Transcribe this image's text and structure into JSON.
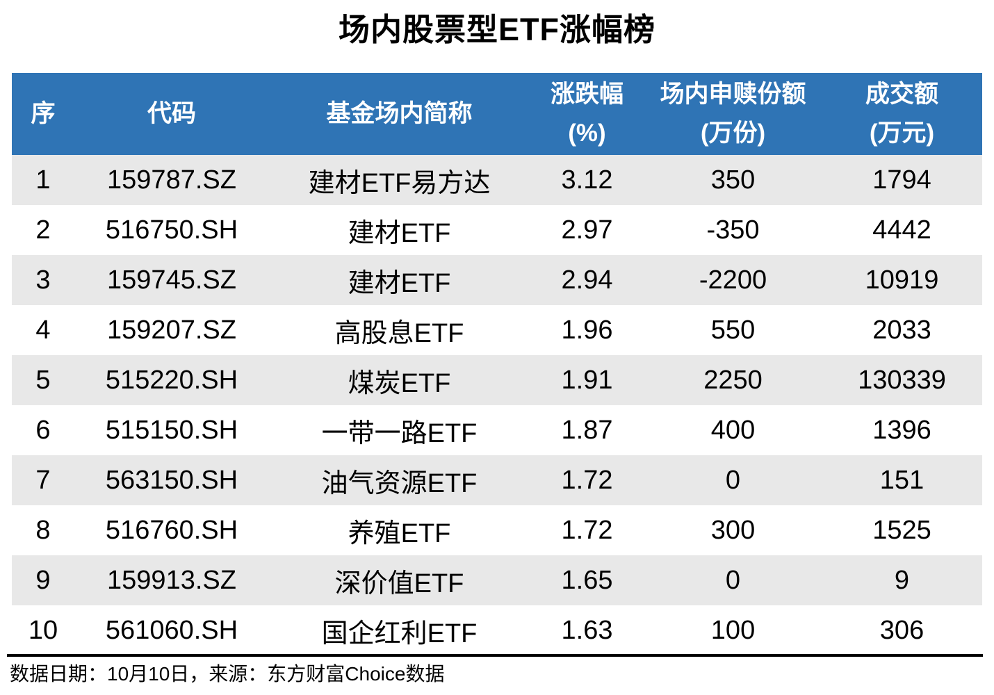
{
  "title": "场内股票型ETF涨幅榜",
  "colors": {
    "header_bg": "#2F74B5",
    "header_text": "#FFFFFF",
    "row_alt_bg": "#E8E8E8",
    "body_text": "#000000"
  },
  "chart_data": {
    "type": "table",
    "title": "场内股票型ETF涨幅榜",
    "columns": [
      {
        "label": "序",
        "unit": ""
      },
      {
        "label": "代码",
        "unit": ""
      },
      {
        "label": "基金场内简称",
        "unit": ""
      },
      {
        "label": "涨跌幅",
        "unit": "(%)"
      },
      {
        "label": "场内申赎份额",
        "unit": "(万份)"
      },
      {
        "label": "成交额",
        "unit": "(万元)"
      }
    ],
    "rows": [
      [
        "1",
        "159787.SZ",
        "建材ETF易方达",
        "3.12",
        "350",
        "1794"
      ],
      [
        "2",
        "516750.SH",
        "建材ETF",
        "2.97",
        "-350",
        "4442"
      ],
      [
        "3",
        "159745.SZ",
        "建材ETF",
        "2.94",
        "-2200",
        "10919"
      ],
      [
        "4",
        "159207.SZ",
        "高股息ETF",
        "1.96",
        "550",
        "2033"
      ],
      [
        "5",
        "515220.SH",
        "煤炭ETF",
        "1.91",
        "2250",
        "130339"
      ],
      [
        "6",
        "515150.SH",
        "一带一路ETF",
        "1.87",
        "400",
        "1396"
      ],
      [
        "7",
        "563150.SH",
        "油气资源ETF",
        "1.72",
        "0",
        "151"
      ],
      [
        "8",
        "516760.SH",
        "养殖ETF",
        "1.72",
        "300",
        "1525"
      ],
      [
        "9",
        "159913.SZ",
        "深价值ETF",
        "1.65",
        "0",
        "9"
      ],
      [
        "10",
        "561060.SH",
        "国企红利ETF",
        "1.63",
        "100",
        "306"
      ]
    ]
  },
  "footer": {
    "note": "数据日期：10月10日，来源：东方财富Choice数据"
  }
}
